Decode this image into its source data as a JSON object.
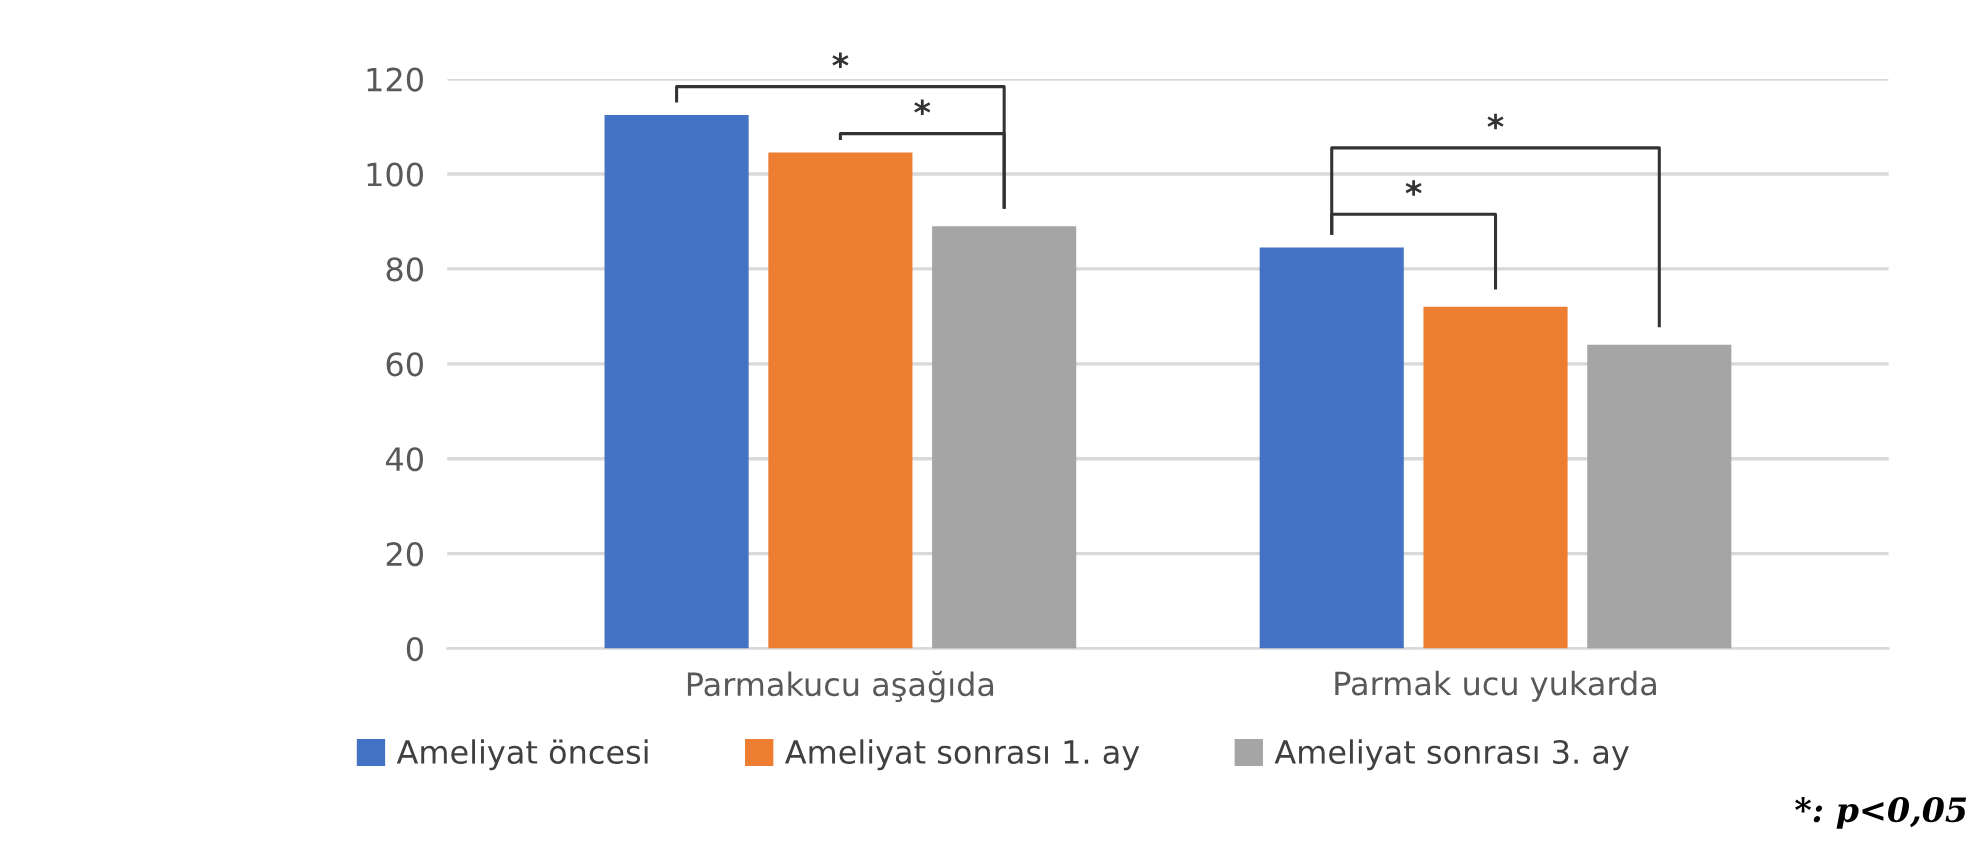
{
  "chart_data": {
    "type": "bar",
    "categories": [
      "Parmakucu aşağıda",
      "Parmak ucu yukarda"
    ],
    "series": [
      {
        "name": "Ameliyat öncesi",
        "color": "#4472c4",
        "values": [
          112.4,
          84.5
        ]
      },
      {
        "name": "Ameliyat sonrası 1. ay",
        "color": "#ed7d31",
        "values": [
          104.5,
          72
        ]
      },
      {
        "name": "Ameliyat sonrası 3. ay",
        "color": "#a5a5a5",
        "values": [
          89,
          64
        ]
      }
    ],
    "ylim": [
      0,
      120
    ],
    "yticks": [
      0,
      20,
      40,
      60,
      80,
      100,
      120
    ],
    "grid": "y",
    "legend": "bottom",
    "annotations": [
      "*",
      "*",
      "*",
      "*",
      "*: p<0,05"
    ]
  }
}
